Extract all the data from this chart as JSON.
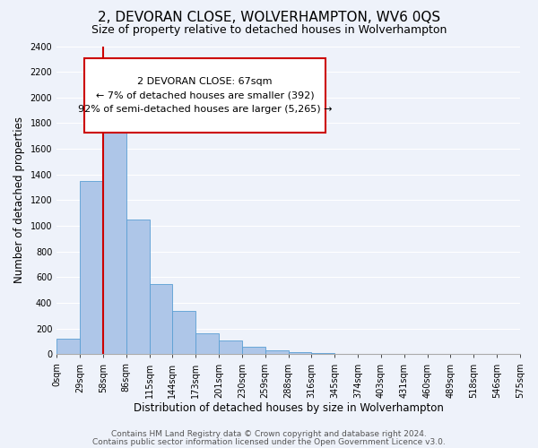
{
  "title": "2, DEVORAN CLOSE, WOLVERHAMPTON, WV6 0QS",
  "subtitle": "Size of property relative to detached houses in Wolverhampton",
  "xlabel": "Distribution of detached houses by size in Wolverhampton",
  "ylabel": "Number of detached properties",
  "bar_color": "#aec6e8",
  "bar_edge_color": "#5a9fd4",
  "bin_labels": [
    "0sqm",
    "29sqm",
    "58sqm",
    "86sqm",
    "115sqm",
    "144sqm",
    "173sqm",
    "201sqm",
    "230sqm",
    "259sqm",
    "288sqm",
    "316sqm",
    "345sqm",
    "374sqm",
    "403sqm",
    "431sqm",
    "460sqm",
    "489sqm",
    "518sqm",
    "546sqm",
    "575sqm"
  ],
  "bar_values": [
    125,
    1350,
    1880,
    1050,
    545,
    340,
    160,
    105,
    60,
    30,
    15,
    8,
    3,
    2,
    1,
    0,
    1,
    0,
    0,
    1
  ],
  "ylim": [
    0,
    2400
  ],
  "yticks": [
    0,
    200,
    400,
    600,
    800,
    1000,
    1200,
    1400,
    1600,
    1800,
    2000,
    2200,
    2400
  ],
  "annotation_box_text": "2 DEVORAN CLOSE: 67sqm\n← 7% of detached houses are smaller (392)\n92% of semi-detached houses are larger (5,265) →",
  "vline_color": "#cc0000",
  "footer_line1": "Contains HM Land Registry data © Crown copyright and database right 2024.",
  "footer_line2": "Contains public sector information licensed under the Open Government Licence v3.0.",
  "background_color": "#eef2fa",
  "grid_color": "#ffffff",
  "title_fontsize": 11,
  "subtitle_fontsize": 9,
  "axis_label_fontsize": 8.5,
  "tick_fontsize": 7,
  "footer_fontsize": 6.5,
  "annotation_fontsize": 8
}
